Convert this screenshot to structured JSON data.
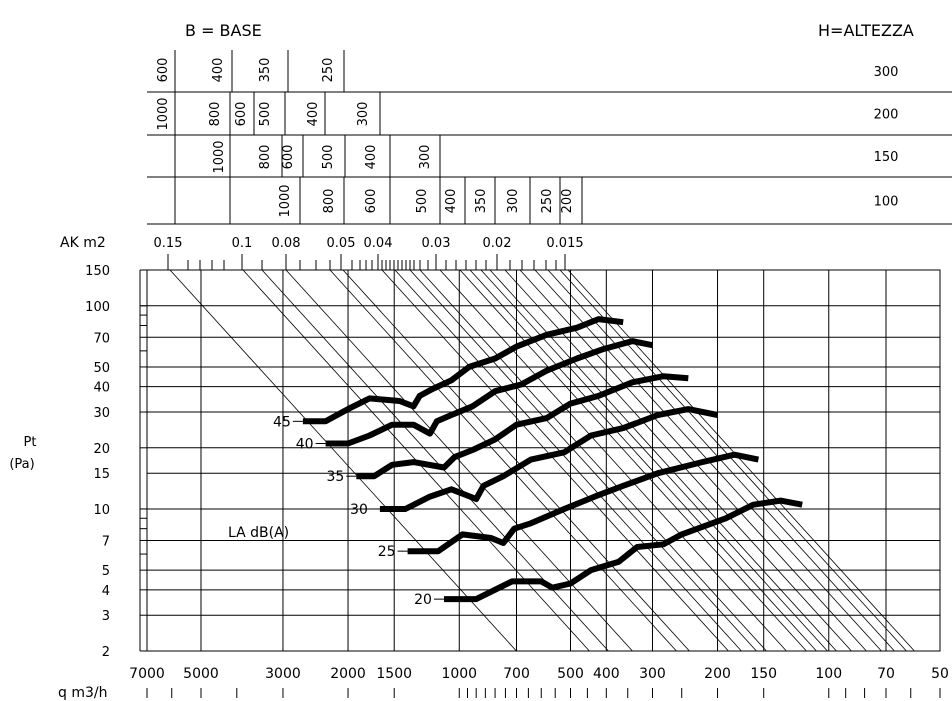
{
  "chart_data": {
    "type": "line",
    "header": {
      "b_label": "B = BASE",
      "h_label": "H=ALTEZZA"
    },
    "size_table": [
      {
        "h": "300",
        "b": [
          "600",
          "400",
          "350",
          "250"
        ]
      },
      {
        "h": "200",
        "b": [
          "1000",
          "800",
          "600",
          "500",
          "400",
          "300"
        ]
      },
      {
        "h": "150",
        "b": [
          "1000",
          "800",
          "600",
          "500",
          "400",
          "300"
        ]
      },
      {
        "h": "100",
        "b": [
          "1000",
          "800",
          "600",
          "500",
          "400",
          "350",
          "300",
          "250",
          "200"
        ]
      }
    ],
    "ak_axis": {
      "label": "AK m2",
      "ticks": [
        "0.15",
        "0.1",
        "0.08",
        "0.05",
        "0.04",
        "0.03",
        "0.02",
        "0.015"
      ]
    },
    "ylabel": "Pt (Pa)",
    "yticks": [
      "150",
      "100",
      "70",
      "50",
      "40",
      "30",
      "20",
      "15",
      "10",
      "7",
      "5",
      "4",
      "3",
      "2"
    ],
    "ylim": [
      2,
      150
    ],
    "xlabel": "q m3/h",
    "xticks": [
      "7000",
      "5000",
      "3000",
      "2000",
      "1500",
      "1000",
      "700",
      "500",
      "400",
      "300",
      "200",
      "150",
      "100",
      "70",
      "50"
    ],
    "xlim": [
      7000,
      50
    ],
    "curve_label": "LA dB(A)",
    "series": [
      {
        "name": "45",
        "points": [
          [
            2650,
            27
          ],
          [
            2300,
            27
          ],
          [
            2000,
            31
          ],
          [
            1750,
            35
          ],
          [
            1450,
            34
          ],
          [
            1330,
            32
          ],
          [
            1280,
            36
          ],
          [
            1180,
            39
          ],
          [
            1050,
            43
          ],
          [
            940,
            50
          ],
          [
            800,
            55
          ],
          [
            700,
            63
          ],
          [
            580,
            72
          ],
          [
            480,
            78
          ],
          [
            420,
            86
          ],
          [
            360,
            83
          ]
        ]
      },
      {
        "name": "40",
        "points": [
          [
            2300,
            21
          ],
          [
            2000,
            21
          ],
          [
            1750,
            23
          ],
          [
            1520,
            26
          ],
          [
            1330,
            26
          ],
          [
            1200,
            23.5
          ],
          [
            1150,
            27
          ],
          [
            1050,
            29
          ],
          [
            920,
            32
          ],
          [
            800,
            38
          ],
          [
            680,
            41
          ],
          [
            580,
            48
          ],
          [
            480,
            55
          ],
          [
            410,
            61
          ],
          [
            340,
            67
          ],
          [
            300,
            64
          ]
        ]
      },
      {
        "name": "35",
        "points": [
          [
            1900,
            14.5
          ],
          [
            1700,
            14.5
          ],
          [
            1520,
            16.5
          ],
          [
            1330,
            17
          ],
          [
            1100,
            16
          ],
          [
            1030,
            18
          ],
          [
            920,
            19.5
          ],
          [
            800,
            22
          ],
          [
            700,
            26
          ],
          [
            580,
            28
          ],
          [
            500,
            33
          ],
          [
            420,
            36
          ],
          [
            340,
            42
          ],
          [
            280,
            45
          ],
          [
            240,
            44
          ]
        ]
      },
      {
        "name": "30",
        "points": [
          [
            1640,
            10
          ],
          [
            1400,
            10
          ],
          [
            1200,
            11.5
          ],
          [
            1050,
            12.5
          ],
          [
            900,
            11.2
          ],
          [
            860,
            13
          ],
          [
            760,
            14.5
          ],
          [
            640,
            17.5
          ],
          [
            520,
            19
          ],
          [
            440,
            23
          ],
          [
            360,
            25
          ],
          [
            290,
            29
          ],
          [
            240,
            31
          ],
          [
            200,
            29
          ]
        ]
      },
      {
        "name": "25",
        "points": [
          [
            1380,
            6.2
          ],
          [
            1140,
            6.2
          ],
          [
            980,
            7.5
          ],
          [
            820,
            7.2
          ],
          [
            760,
            6.8
          ],
          [
            710,
            8
          ],
          [
            640,
            8.5
          ],
          [
            520,
            10
          ],
          [
            430,
            11.5
          ],
          [
            360,
            13
          ],
          [
            290,
            15
          ],
          [
            220,
            17
          ],
          [
            180,
            18.5
          ],
          [
            155,
            17.5
          ]
        ]
      },
      {
        "name": "20",
        "points": [
          [
            1100,
            3.6
          ],
          [
            900,
            3.6
          ],
          [
            720,
            4.4
          ],
          [
            600,
            4.4
          ],
          [
            560,
            4.1
          ],
          [
            500,
            4.3
          ],
          [
            440,
            5
          ],
          [
            370,
            5.5
          ],
          [
            330,
            6.5
          ],
          [
            280,
            6.7
          ],
          [
            250,
            7.5
          ],
          [
            190,
            9
          ],
          [
            160,
            10.5
          ],
          [
            135,
            11
          ],
          [
            118,
            10.5
          ]
        ]
      }
    ],
    "grid": true
  }
}
